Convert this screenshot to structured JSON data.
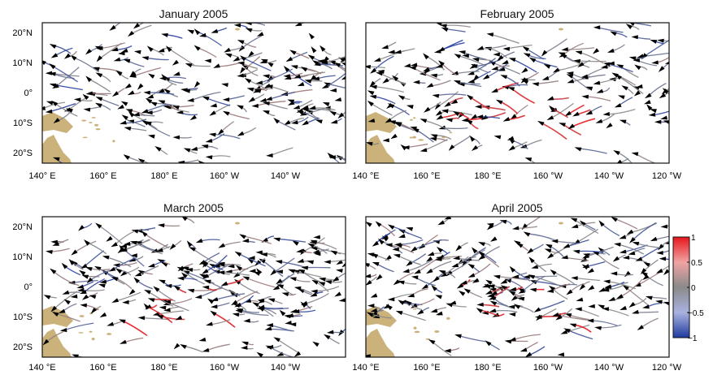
{
  "panels": [
    {
      "title": "January 2005",
      "x_ticks": [
        "140° E",
        "160° E",
        "180° E",
        "160° W",
        "140° W"
      ],
      "y_ticks": [
        "20°N",
        "10°N",
        "0°",
        "10°S",
        "20°S"
      ],
      "seed": 11,
      "n_arrows": 210,
      "red_fraction": 0.0
    },
    {
      "title": "February 2005",
      "x_ticks": [
        "140 °E",
        "160 °E",
        "180 °E",
        "160 °W",
        "140 °W",
        "120 °W"
      ],
      "y_ticks": [],
      "seed": 27,
      "n_arrows": 200,
      "red_fraction": 0.35
    },
    {
      "title": "March 2005",
      "x_ticks": [
        "140 °E",
        "160 °E",
        "180 °E",
        "160 °W",
        "140 °W"
      ],
      "y_ticks": [
        "20°N",
        "10°N",
        "0°",
        "10°S",
        "20°S"
      ],
      "seed": 43,
      "n_arrows": 230,
      "red_fraction": 0.08
    },
    {
      "title": "April 2005",
      "x_ticks": [
        "140 °E",
        "160 °E",
        "180 °E",
        "160 °W",
        "140 °W",
        "120 °W"
      ],
      "y_ticks": [],
      "seed": 59,
      "n_arrows": 230,
      "red_fraction": 0.1
    }
  ],
  "colorbar": {
    "ticks": [
      "1",
      "0.5",
      "0",
      "−0.5",
      "−1"
    ],
    "values": [
      1,
      0.5,
      0,
      -0.5,
      -1
    ],
    "colors": {
      "high": "#e8141b",
      "mid": "#8a8a8a",
      "low": "#1f3a9e"
    }
  },
  "land_color": "#cbb27a"
}
